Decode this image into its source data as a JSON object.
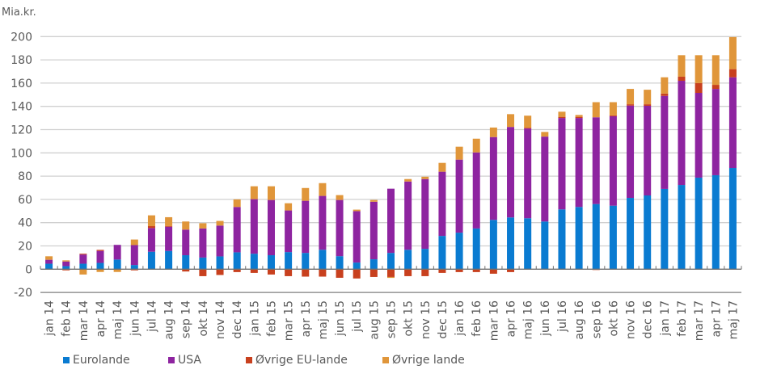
{
  "chart_data": {
    "type": "bar",
    "stacked": true,
    "title": "",
    "ylabel": "Mia.kr.",
    "xlabel": "",
    "ylim": [
      -20,
      200
    ],
    "yticks": [
      -20,
      0,
      20,
      40,
      60,
      80,
      100,
      120,
      140,
      160,
      180,
      200
    ],
    "grid": true,
    "legend_position": "bottom",
    "categories": [
      "jan 14",
      "feb 14",
      "mar 14",
      "apr 14",
      "maj 14",
      "jun 14",
      "jul 14",
      "aug 14",
      "sep 14",
      "okt 14",
      "nov 14",
      "dec 14",
      "jan 15",
      "feb 15",
      "mar 15",
      "apr 15",
      "maj 15",
      "jun 15",
      "jul 15",
      "aug 15",
      "sep 15",
      "okt 15",
      "nov 15",
      "dec 15",
      "jan 16",
      "feb 16",
      "mar 16",
      "apr 16",
      "maj 16",
      "jun 16",
      "jul 16",
      "aug 16",
      "sep 16",
      "okt 16",
      "nov 16",
      "dec 16",
      "jan 17",
      "feb 17",
      "mar 17",
      "apr 17",
      "maj 17"
    ],
    "series": [
      {
        "name": "Eurolande",
        "color": "#0a7bd1",
        "values": [
          4.7,
          2.6,
          4.7,
          5.4,
          8.3,
          3.6,
          15.0,
          15.7,
          12.0,
          10.0,
          11.0,
          14.5,
          13.3,
          12.0,
          14.7,
          14.0,
          16.7,
          11.2,
          5.7,
          8.5,
          14.0,
          16.7,
          17.5,
          28.6,
          31.4,
          35.0,
          42.4,
          44.5,
          43.8,
          41.0,
          51.4,
          53.5,
          56.0,
          54.6,
          61.3,
          63.4,
          69.0,
          72.4,
          78.7,
          80.8,
          87.0
        ]
      },
      {
        "name": "USA",
        "color": "#8e24a0",
        "values": [
          3.4,
          4.0,
          7.9,
          10.3,
          12.6,
          17.1,
          20.4,
          20.8,
          22.0,
          25.0,
          26.5,
          39.0,
          46.9,
          47.5,
          35.8,
          44.8,
          46.3,
          48.3,
          44.2,
          49.5,
          55.2,
          58.7,
          60.0,
          55.2,
          62.8,
          65.4,
          71.2,
          77.8,
          77.2,
          73.0,
          78.6,
          76.5,
          74.6,
          76.9,
          79.4,
          77.1,
          80.0,
          89.6,
          72.9,
          74.2,
          78.0
        ]
      },
      {
        "name": "Øvrige EU-lande",
        "color": "#c8401e",
        "values": [
          0,
          -1.0,
          0.7,
          0.9,
          0,
          -1.0,
          1.6,
          0.7,
          -2.0,
          -6.0,
          -5.0,
          -2.5,
          -3.2,
          -4.6,
          -6.0,
          -6.4,
          -6.4,
          -7.4,
          -8.0,
          -6.7,
          -6.7,
          -6.0,
          -6.0,
          -3.2,
          -2.5,
          -2.5,
          -3.9,
          -2.5,
          0.6,
          0,
          1.0,
          1.0,
          -0.7,
          0.8,
          1.1,
          1.3,
          2.0,
          3.5,
          8.4,
          3.5,
          7.0
        ]
      },
      {
        "name": "Øvrige lande",
        "color": "#e0963a",
        "values": [
          3.0,
          1.0,
          -4.6,
          -2.4,
          -2.4,
          4.8,
          9.3,
          7.5,
          7.0,
          4.5,
          4.0,
          6.5,
          11.1,
          11.8,
          6.2,
          11.0,
          11.0,
          4.2,
          1.3,
          1.5,
          -0.8,
          2.1,
          2.0,
          7.6,
          11.1,
          11.8,
          8.2,
          11.0,
          10.4,
          4.0,
          4.4,
          1.6,
          13.0,
          11.3,
          13.2,
          12.5,
          14.0,
          18.5,
          24.0,
          25.5,
          27.6
        ]
      }
    ]
  },
  "legend": {
    "items": [
      {
        "label": "Eurolande",
        "color": "#0a7bd1"
      },
      {
        "label": "USA",
        "color": "#8e24a0"
      },
      {
        "label": "Øvrige EU-lande",
        "color": "#c8401e"
      },
      {
        "label": "Øvrige lande",
        "color": "#e0963a"
      }
    ]
  }
}
